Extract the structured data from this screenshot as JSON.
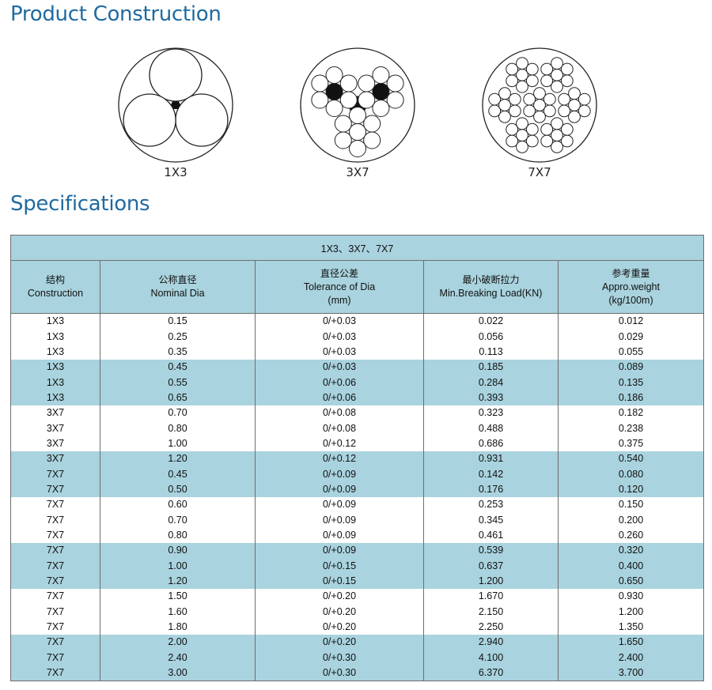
{
  "section_titles": {
    "construction": "Product Construction",
    "specifications": "Specifications"
  },
  "constructions": [
    "1X3",
    "3X7",
    "7X7"
  ],
  "table": {
    "title": "1X3、3X7、7X7",
    "headers": [
      {
        "zh": "结构",
        "en": "Construction",
        "unit": ""
      },
      {
        "zh": "公称直径",
        "en": "Nominal Dia",
        "unit": ""
      },
      {
        "zh": "直径公差",
        "en": "Tolerance of Dia",
        "unit": "(mm)"
      },
      {
        "zh": "最小破断拉力",
        "en": "Min.Breaking Load(KN)",
        "unit": ""
      },
      {
        "zh": "参考重量",
        "en": "Appro.weight",
        "unit": "(kg/100m)"
      }
    ],
    "rows": [
      [
        "1X3",
        "0.15",
        "0/+0.03",
        "0.022",
        "0.012"
      ],
      [
        "1X3",
        "0.25",
        "0/+0.03",
        "0.056",
        "0.029"
      ],
      [
        "1X3",
        "0.35",
        "0/+0.03",
        "0.113",
        "0.055"
      ],
      [
        "1X3",
        "0.45",
        "0/+0.03",
        "0.185",
        "0.089"
      ],
      [
        "1X3",
        "0.55",
        "0/+0.06",
        "0.284",
        "0.135"
      ],
      [
        "1X3",
        "0.65",
        "0/+0.06",
        "0.393",
        "0.186"
      ],
      [
        "3X7",
        "0.70",
        "0/+0.08",
        "0.323",
        "0.182"
      ],
      [
        "3X7",
        "0.80",
        "0/+0.08",
        "0.488",
        "0.238"
      ],
      [
        "3X7",
        "1.00",
        "0/+0.12",
        "0.686",
        "0.375"
      ],
      [
        "3X7",
        "1.20",
        "0/+0.12",
        "0.931",
        "0.540"
      ],
      [
        "7X7",
        "0.45",
        "0/+0.09",
        "0.142",
        "0.080"
      ],
      [
        "7X7",
        "0.50",
        "0/+0.09",
        "0.176",
        "0.120"
      ],
      [
        "7X7",
        "0.60",
        "0/+0.09",
        "0.253",
        "0.150"
      ],
      [
        "7X7",
        "0.70",
        "0/+0.09",
        "0.345",
        "0.200"
      ],
      [
        "7X7",
        "0.80",
        "0/+0.09",
        "0.461",
        "0.260"
      ],
      [
        "7X7",
        "0.90",
        "0/+0.09",
        "0.539",
        "0.320"
      ],
      [
        "7X7",
        "1.00",
        "0/+0.15",
        "0.637",
        "0.400"
      ],
      [
        "7X7",
        "1.20",
        "0/+0.15",
        "1.200",
        "0.650"
      ],
      [
        "7X7",
        "1.50",
        "0/+0.20",
        "1.670",
        "0.930"
      ],
      [
        "7X7",
        "1.60",
        "0/+0.20",
        "2.150",
        "1.200"
      ],
      [
        "7X7",
        "1.80",
        "0/+0.20",
        "2.250",
        "1.350"
      ],
      [
        "7X7",
        "2.00",
        "0/+0.20",
        "2.940",
        "1.650"
      ],
      [
        "7X7",
        "2.40",
        "0/+0.30",
        "4.100",
        "2.400"
      ],
      [
        "7X7",
        "3.00",
        "0/+0.30",
        "6.370",
        "3.700"
      ]
    ]
  },
  "colors": {
    "heading": "#1f6aa0",
    "band": "#a9d3de",
    "border": "#6e6e6e"
  }
}
